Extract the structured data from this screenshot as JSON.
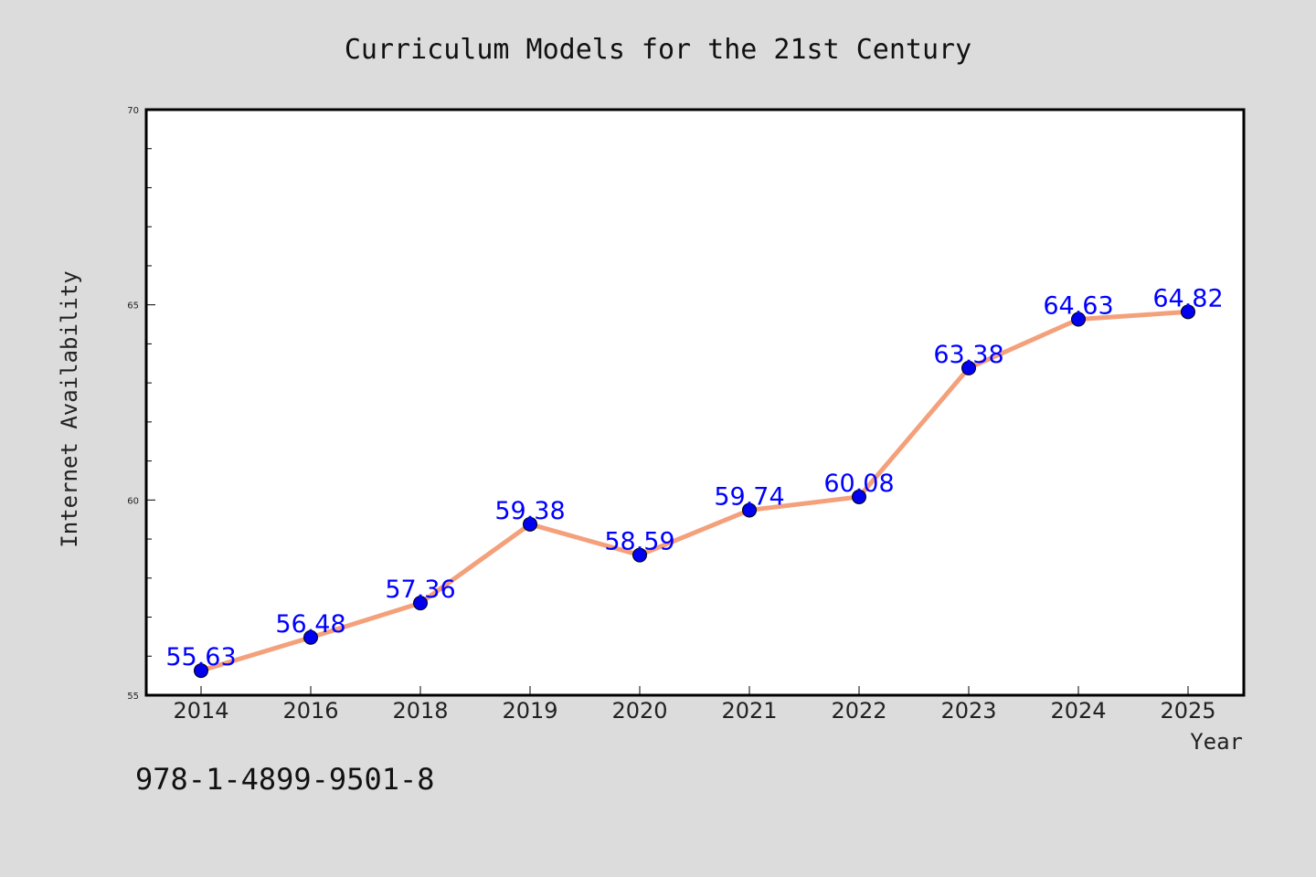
{
  "chart_data": {
    "type": "line",
    "title": "Curriculum Models for the 21st Century",
    "xlabel": "Year",
    "ylabel": "Internet Availability",
    "categories": [
      "2014",
      "2016",
      "2018",
      "2019",
      "2020",
      "2021",
      "2022",
      "2023",
      "2024",
      "2025"
    ],
    "series": [
      {
        "values": [
          55.63,
          56.48,
          57.36,
          59.38,
          58.59,
          59.74,
          60.08,
          63.38,
          64.63,
          64.82
        ],
        "labels": [
          "55.63",
          "56.48",
          "57.36",
          "59.38",
          "58.59",
          "59.74",
          "60.08",
          "63.38",
          "64.63",
          "64.82"
        ],
        "line_color": "#f4a07a",
        "marker_color": "#0000ee"
      }
    ],
    "ylim": [
      55,
      70
    ],
    "yticks": [
      "55",
      "60",
      "65",
      "70"
    ],
    "grid": false,
    "legend": "none"
  },
  "footer": {
    "isbn": "978-1-4899-9501-8"
  },
  "colors": {
    "background": "#dcdcdc",
    "plot_background": "#ffffff",
    "label_color": "#0000ff"
  }
}
